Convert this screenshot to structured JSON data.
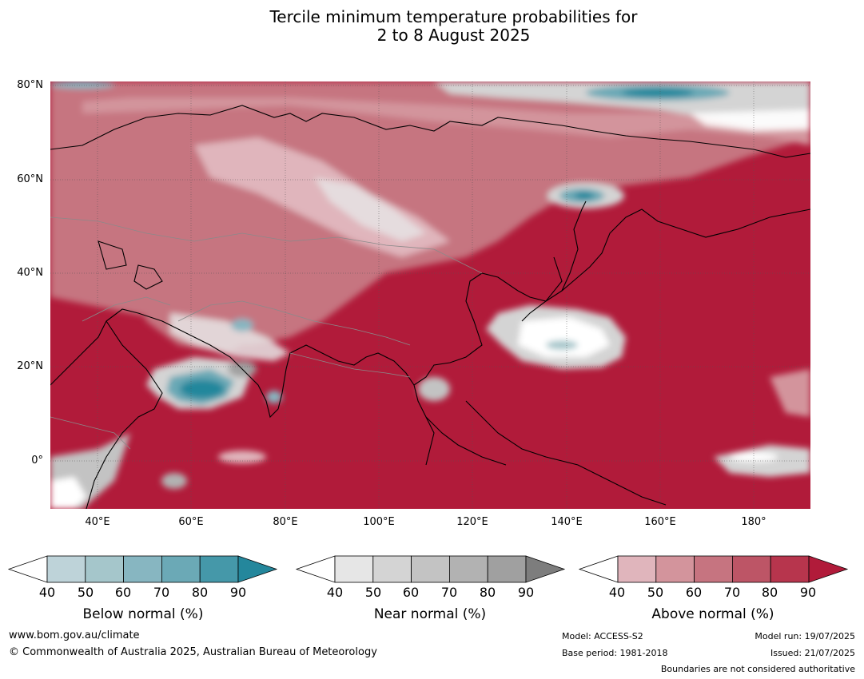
{
  "title": {
    "line1": "Tercile minimum temperature probabilities for",
    "line2": "2 to 8 August 2025"
  },
  "map": {
    "lat_labels": [
      "80°N",
      "60°N",
      "40°N",
      "20°N",
      "0°"
    ],
    "lon_labels": [
      "40°E",
      "60°E",
      "80°E",
      "100°E",
      "120°E",
      "140°E",
      "160°E",
      "180°"
    ]
  },
  "colorbars": [
    {
      "label": "Below normal (%)",
      "ticks": [
        "40",
        "50",
        "60",
        "70",
        "80",
        "90"
      ],
      "colors": [
        "#ffffff",
        "#bed3d9",
        "#a5c6cb",
        "#87b6c1",
        "#6ba9b6",
        "#4598a9",
        "#24879c"
      ]
    },
    {
      "label": "Near normal (%)",
      "ticks": [
        "40",
        "50",
        "60",
        "70",
        "80",
        "90"
      ],
      "colors": [
        "#ffffff",
        "#e6e6e6",
        "#d4d4d4",
        "#c3c3c3",
        "#b2b2b2",
        "#a0a0a0",
        "#7d7d7d"
      ]
    },
    {
      "label": "Above normal (%)",
      "ticks": [
        "40",
        "50",
        "60",
        "70",
        "80",
        "90"
      ],
      "colors": [
        "#ffffff",
        "#e0b5bc",
        "#d3949c",
        "#c67480",
        "#bd5566",
        "#b7354d",
        "#b11b3a"
      ]
    }
  ],
  "footer": {
    "website": "www.bom.gov.au/climate",
    "copyright": "© Commonwealth of Australia 2025, Australian Bureau of Meteorology",
    "model": "Model: ACCESS-S2",
    "base_period": "Base period: 1981-2018",
    "model_run": "Model run: 19/07/2025",
    "issued": "Issued: 21/07/2025",
    "boundaries_note": "Boundaries are not considered authoritative"
  }
}
